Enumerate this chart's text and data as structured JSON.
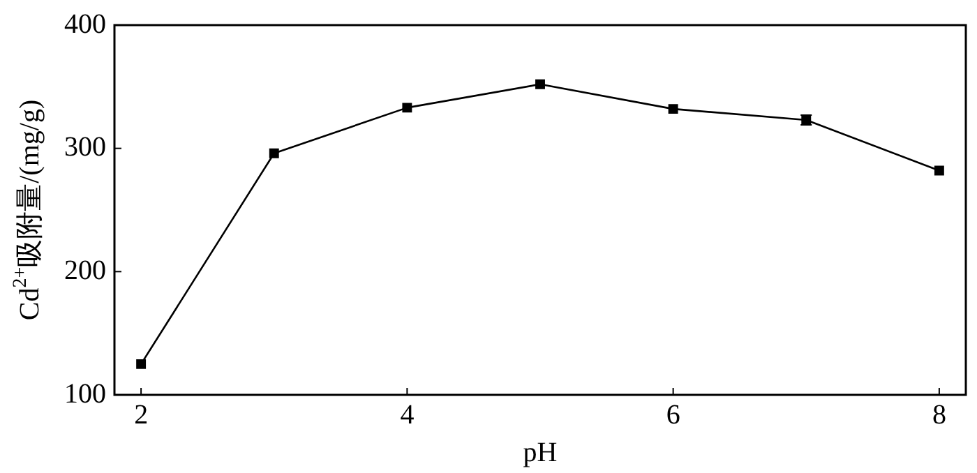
{
  "chart_data": {
    "type": "line",
    "xlabel": "pH",
    "ylabel": "Cd$^{2+}$吸附量/(mg/g)",
    "x": [
      2,
      3,
      4,
      5,
      6,
      7,
      8
    ],
    "series": [
      {
        "color": "#000000",
        "values": [
          125,
          296,
          333,
          352,
          332,
          323,
          282
        ],
        "errors": [
          null,
          null,
          null,
          null,
          null,
          4,
          null
        ]
      }
    ],
    "xlim": [
      1.8,
      8.2
    ],
    "xticks": [
      2,
      4,
      6,
      8
    ],
    "ylim": [
      100,
      400
    ],
    "yticks": [
      100,
      200,
      300,
      400
    ],
    "grid": false,
    "legend": false,
    "marker": "square",
    "line_style": "solid"
  }
}
